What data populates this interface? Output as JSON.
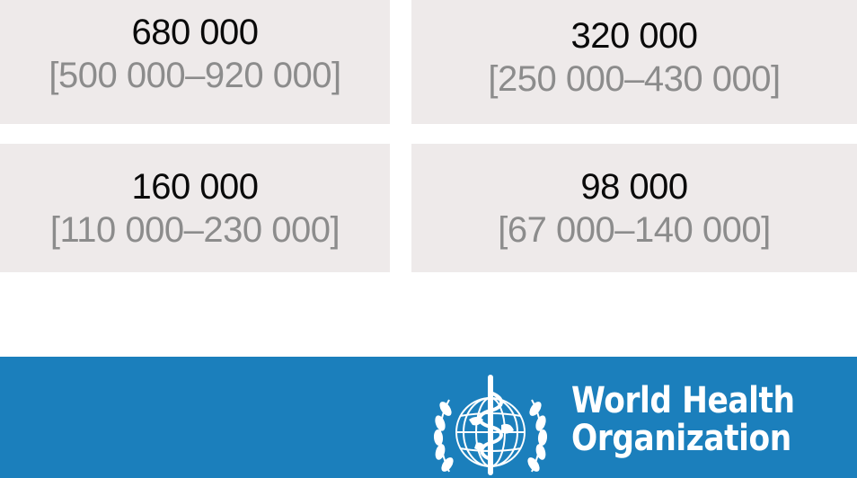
{
  "stats": [
    {
      "value": "680 000",
      "range": "[500 000–920 000]"
    },
    {
      "value": "320 000",
      "range": "[250 000–430 000]"
    },
    {
      "value": "160 000",
      "range": "[110 000–230 000]"
    },
    {
      "value": "98 000",
      "range": "[67 000–140 000]"
    }
  ],
  "footer": {
    "logo_line1": "World Health",
    "logo_line2": "Organization",
    "band_color": "#1b7fbc",
    "emblem_icon": "who-emblem-icon"
  }
}
